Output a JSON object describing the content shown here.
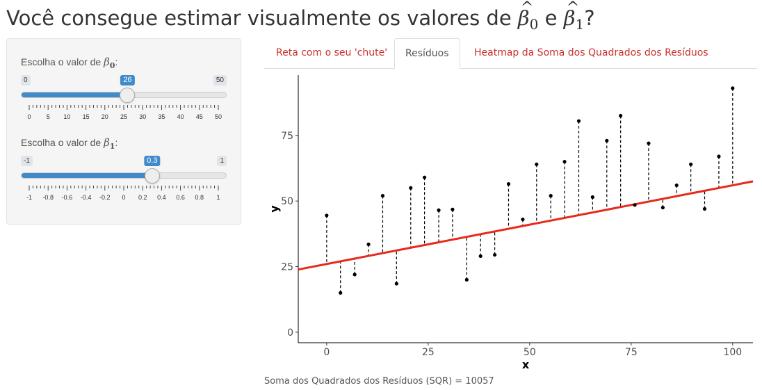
{
  "header": {
    "title_pre": "Você consegue estimar visualmente os valores de ",
    "beta_symbol": "β",
    "sub0": "0",
    "and": " e ",
    "sub1": "1",
    "title_post": "?"
  },
  "sidebar": {
    "slider_b0": {
      "label": "Escolha o valor de ",
      "beta_symbol": "β",
      "sub": "0",
      "colon": ":",
      "min": 0,
      "max": 50,
      "value": 26,
      "min_label": "0",
      "max_label": "50",
      "value_label": "26",
      "tick_labels": [
        "0",
        "5",
        "10",
        "15",
        "20",
        "25",
        "30",
        "35",
        "40",
        "45",
        "50"
      ]
    },
    "slider_b1": {
      "label": "Escolha o valor de ",
      "beta_symbol": "β",
      "sub": "1",
      "colon": ":",
      "min": -1,
      "max": 1,
      "value": 0.3,
      "min_label": "-1",
      "max_label": "1",
      "value_label": "0.3",
      "tick_labels": [
        "-1",
        "-0.8",
        "-0.6",
        "-0.4",
        "-0.2",
        "0",
        "0.2",
        "0.4",
        "0.6",
        "0.8",
        "1"
      ]
    }
  },
  "tabs": [
    {
      "label": "Reta com o seu 'chute'",
      "active": false
    },
    {
      "label": "Resíduos",
      "active": true
    },
    {
      "label": "Heatmap da Soma dos Quadrados dos Resíduos",
      "active": false
    }
  ],
  "colors": {
    "accent": "#428bca",
    "tab_link": "#c9302c",
    "line": "#e8291c"
  },
  "chart_data": {
    "type": "scatter",
    "title": "",
    "xlabel": "x",
    "ylabel": "y",
    "xlim": [
      -7,
      105
    ],
    "ylim": [
      -4,
      98
    ],
    "xticks": [
      0,
      25,
      50,
      75,
      100
    ],
    "yticks": [
      0,
      25,
      50,
      75
    ],
    "tick_labels_x": [
      "0",
      "25",
      "50",
      "75",
      "100"
    ],
    "tick_labels_y": [
      "0",
      "25",
      "50",
      "75"
    ],
    "fitted_line": {
      "intercept": 26,
      "slope": 0.3
    },
    "points": [
      [
        0,
        44.5
      ],
      [
        3.4,
        15
      ],
      [
        6.9,
        22
      ],
      [
        10.3,
        33.5
      ],
      [
        13.8,
        52
      ],
      [
        17.2,
        18.5
      ],
      [
        20.7,
        55
      ],
      [
        24.1,
        59
      ],
      [
        27.6,
        46.5
      ],
      [
        31,
        46.8
      ],
      [
        34.5,
        20
      ],
      [
        37.9,
        29
      ],
      [
        41.4,
        29.5
      ],
      [
        44.8,
        56.5
      ],
      [
        48.3,
        43
      ],
      [
        51.7,
        64
      ],
      [
        55.2,
        52
      ],
      [
        58.6,
        65
      ],
      [
        62.1,
        80.5
      ],
      [
        65.5,
        51.5
      ],
      [
        69,
        73
      ],
      [
        72.4,
        82.5
      ],
      [
        75.9,
        48.5
      ],
      [
        79.3,
        72
      ],
      [
        82.8,
        47.5
      ],
      [
        86.2,
        56
      ],
      [
        89.7,
        64
      ],
      [
        93.1,
        47
      ],
      [
        96.6,
        67
      ],
      [
        100,
        93
      ]
    ],
    "grid": false
  },
  "footer": {
    "sqr_text": "Soma dos Quadrados dos Resíduos (SQR) = 10057"
  }
}
